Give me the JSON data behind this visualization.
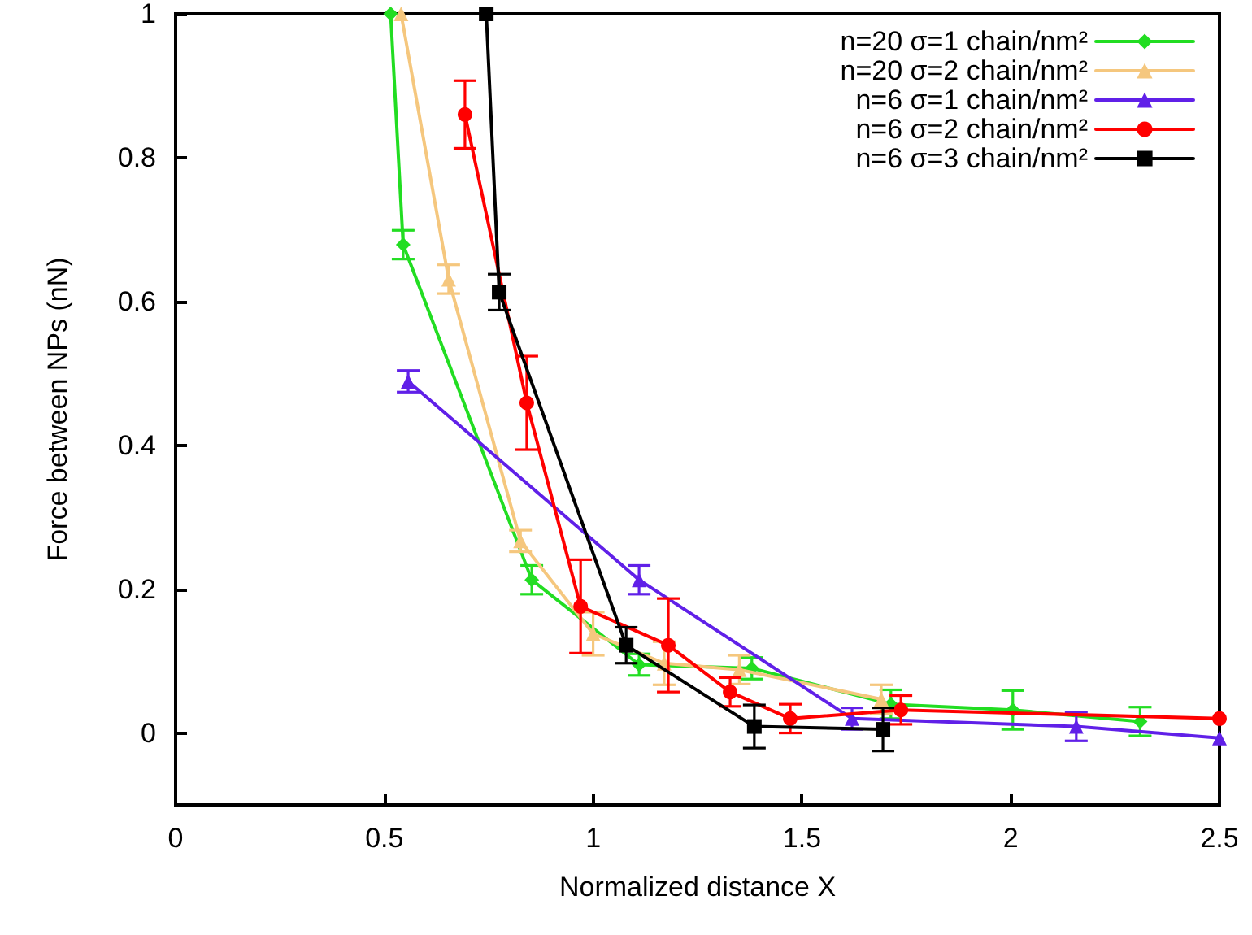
{
  "chart_data": {
    "type": "line",
    "xlabel": "Normalized distance X",
    "ylabel": "Force between NPs (nN)",
    "xlim": [
      0,
      2.5
    ],
    "xticks": [
      0,
      0.5,
      1,
      1.5,
      2,
      2.5
    ],
    "ylim": [
      -0.1,
      1
    ],
    "yticks": [
      0,
      0.2,
      0.4,
      0.6,
      0.8,
      1
    ],
    "grid": false,
    "legend": "top right",
    "line_style": "solid",
    "series": [
      {
        "name": "n=20 σ=1 chain/nm²",
        "color": "#22dd22",
        "marker": "diamond",
        "x": [
          0.515,
          0.545,
          0.853,
          1.11,
          1.38,
          1.713,
          2.005,
          2.31
        ],
        "values": [
          1,
          0.679,
          0.213,
          0.095,
          0.09,
          0.04,
          0.032,
          0.016
        ],
        "errors": [
          null,
          0.02,
          0.02,
          0.015,
          0.015,
          0.02,
          0.027,
          0.02
        ]
      },
      {
        "name": "n=20 σ=2 chain/nm²",
        "color": "#f5c77e",
        "marker": "triangle",
        "x": [
          0.54,
          0.654,
          0.826,
          1.0,
          1.17,
          1.35,
          1.69
        ],
        "values": [
          1,
          0.631,
          0.267,
          0.138,
          0.097,
          0.088,
          0.047
        ],
        "errors": [
          null,
          0.02,
          0.015,
          0.03,
          0.03,
          0.02,
          0.02
        ]
      },
      {
        "name": "n=6 σ=1 chain/nm²",
        "color": "#6020e8",
        "marker": "triangle",
        "x": [
          0.557,
          1.11,
          1.62,
          2.157,
          2.5
        ],
        "values": [
          0.489,
          0.213,
          0.02,
          0.009,
          -0.007
        ],
        "errors": [
          0.015,
          0.02,
          0.015,
          0.02,
          null
        ]
      },
      {
        "name": "n=6 σ=2 chain/nm²",
        "color": "#ff0000",
        "marker": "circle",
        "x": [
          0.693,
          0.841,
          0.97,
          1.18,
          1.328,
          1.472,
          1.737,
          2.5
        ],
        "values": [
          0.86,
          0.459,
          0.176,
          0.122,
          0.057,
          0.02,
          0.032,
          0.02
        ],
        "errors": [
          0.047,
          0.065,
          0.065,
          0.065,
          0.02,
          0.02,
          0.02,
          null
        ]
      },
      {
        "name": "n=6 σ=3 chain/nm²",
        "color": "#000000",
        "marker": "square",
        "x": [
          0.744,
          0.775,
          1.079,
          1.386,
          1.694
        ],
        "values": [
          1,
          0.613,
          0.122,
          0.009,
          0.005
        ],
        "errors": [
          null,
          0.025,
          0.025,
          0.03,
          0.03
        ]
      }
    ]
  }
}
